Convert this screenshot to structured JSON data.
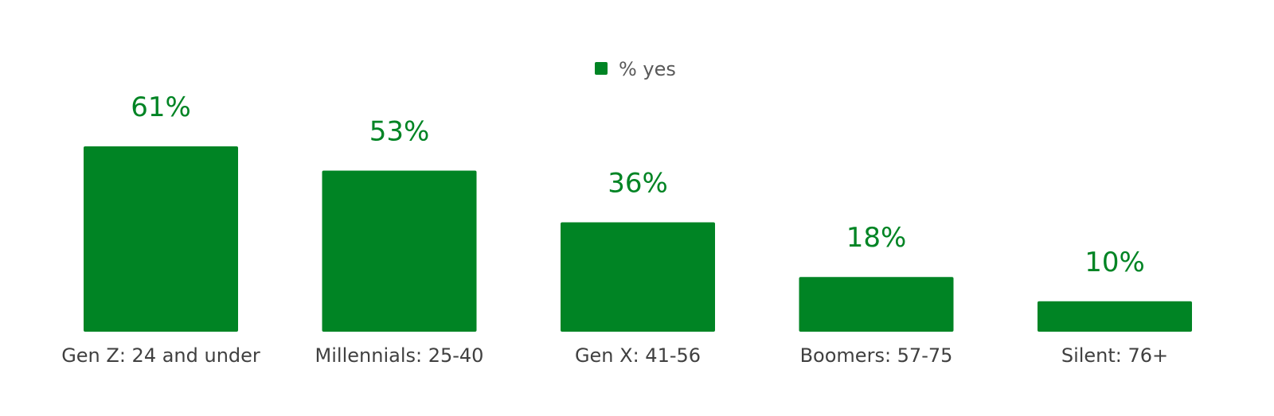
{
  "chart_data": {
    "type": "bar",
    "categories": [
      "Gen Z: 24 and under",
      "Millennials: 25-40",
      "Gen X: 41-56",
      "Boomers: 57-75",
      "Silent: 76+"
    ],
    "series": [
      {
        "name": "% yes",
        "values": [
          61,
          53,
          36,
          18,
          10
        ],
        "data_labels": [
          "61%",
          "53%",
          "36%",
          "18%",
          "10%"
        ]
      }
    ],
    "ylim": [
      0,
      100
    ],
    "grid": false,
    "legend": {
      "position": "top-center",
      "entries": [
        "% yes"
      ]
    },
    "colors": {
      "bar": "#008424",
      "data_label": "#008424",
      "tick_label": "#404040",
      "legend_text": "#595959"
    }
  }
}
